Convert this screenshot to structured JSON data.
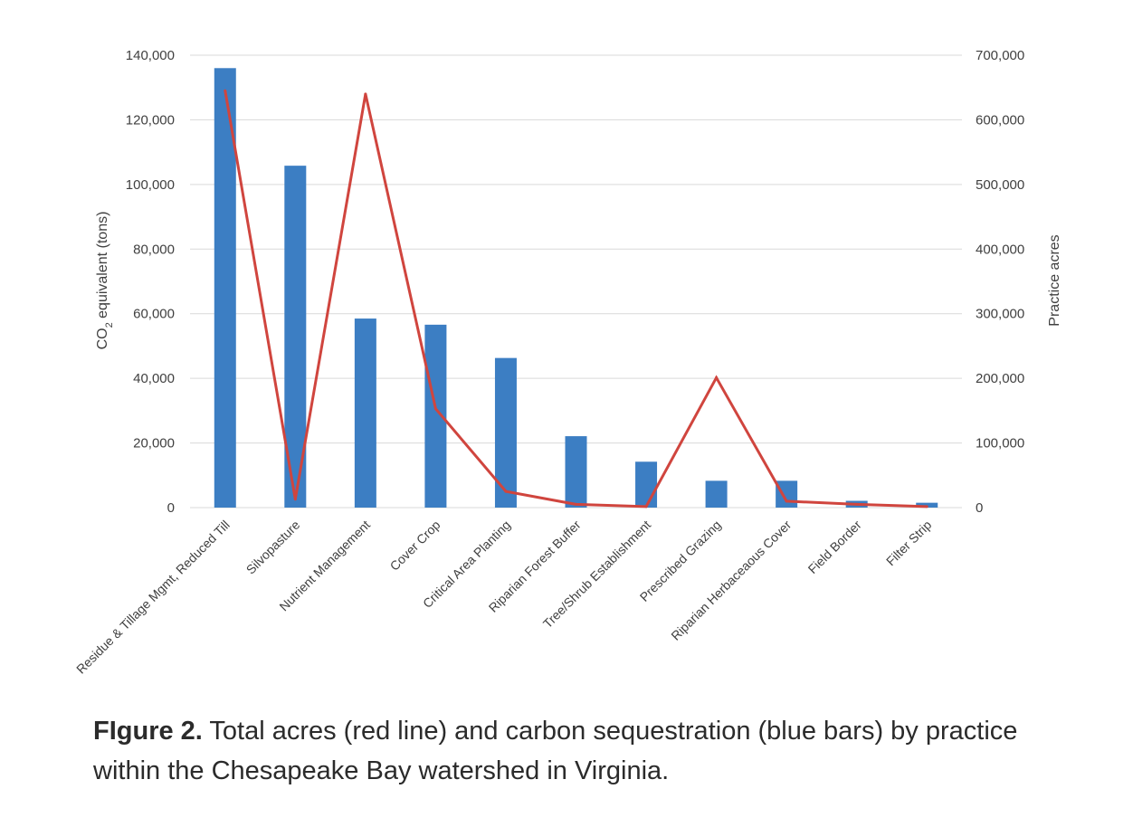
{
  "chart_data": {
    "type": "bar",
    "categories": [
      "Residue & Tillage Mgmt, Reduced Till",
      "Silvopasture",
      "Nutrient Management",
      "Cover Crop",
      "Critical Area Planting",
      "Riparian Forest Buffer",
      "Tree/Shrub Establishment",
      "Prescribed Grazing",
      "Riparian Herbaceaous Cover",
      "Field Border",
      "Filter Strip"
    ],
    "series": [
      {
        "type": "bar",
        "axis": "left",
        "color": "#3c7ec3",
        "values": [
          136000,
          105800,
          58500,
          56600,
          46300,
          22100,
          14200,
          8300,
          8300,
          2100,
          1500
        ]
      },
      {
        "type": "line",
        "axis": "right",
        "color": "#d0453e",
        "values": [
          645000,
          13000,
          640000,
          153000,
          25000,
          5000,
          1500,
          201000,
          10000,
          5000,
          1500
        ]
      }
    ],
    "left_axis": {
      "title_main": "CO",
      "title_sub": "2",
      "title_rest": " equivalent (tons)",
      "range": [
        0,
        140000
      ],
      "ticks": [
        "0",
        "20,000",
        "40,000",
        "60,000",
        "80,000",
        "100,000",
        "120,000",
        "140,000"
      ]
    },
    "right_axis": {
      "title": "Practice acres",
      "range": [
        0,
        700000
      ],
      "ticks": [
        "0",
        "100,000",
        "200,000",
        "300,000",
        "400,000",
        "500,000",
        "600,000",
        "700,000"
      ]
    },
    "grid": true
  },
  "caption": {
    "label": "FIgure 2.",
    "text": " Total acres (red line) and carbon sequestration (blue bars) by practice within the Chesapeake Bay watershed in Virginia."
  }
}
